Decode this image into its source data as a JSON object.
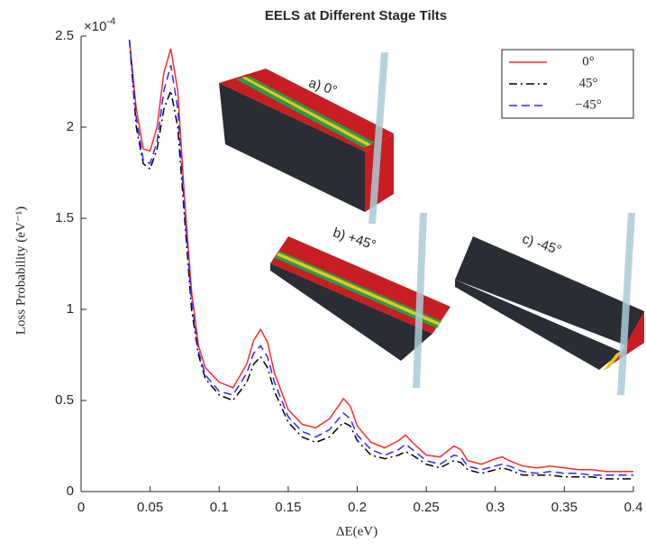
{
  "chart_data": {
    "type": "line",
    "title": "EELS at Different Stage Tilts",
    "xlabel": "ΔE(eV)",
    "ylabel": "Loss Probability (eV⁻¹)",
    "y_scale_base": "×10",
    "y_scale_exponent": "-4",
    "x": [
      0.035,
      0.04,
      0.045,
      0.05,
      0.055,
      0.06,
      0.065,
      0.07,
      0.075,
      0.08,
      0.085,
      0.09,
      0.1,
      0.11,
      0.12,
      0.125,
      0.13,
      0.135,
      0.14,
      0.15,
      0.16,
      0.17,
      0.18,
      0.19,
      0.195,
      0.2,
      0.21,
      0.22,
      0.23,
      0.235,
      0.24,
      0.25,
      0.26,
      0.27,
      0.275,
      0.28,
      0.29,
      0.3,
      0.305,
      0.31,
      0.32,
      0.33,
      0.34,
      0.35,
      0.36,
      0.37,
      0.38,
      0.39,
      0.4
    ],
    "series": [
      {
        "name": "0°",
        "color": "#ff2a2a",
        "dash": "solid",
        "values": [
          2.48,
          2.1,
          1.88,
          1.87,
          2.0,
          2.3,
          2.43,
          2.2,
          1.6,
          1.1,
          0.8,
          0.68,
          0.6,
          0.57,
          0.7,
          0.83,
          0.89,
          0.82,
          0.65,
          0.45,
          0.37,
          0.35,
          0.4,
          0.51,
          0.47,
          0.36,
          0.27,
          0.24,
          0.28,
          0.31,
          0.27,
          0.2,
          0.19,
          0.25,
          0.23,
          0.17,
          0.15,
          0.18,
          0.19,
          0.17,
          0.14,
          0.13,
          0.14,
          0.13,
          0.12,
          0.12,
          0.11,
          0.11,
          0.11
        ]
      },
      {
        "name": "45°",
        "color": "#000000",
        "dash": "dashdot",
        "values": [
          2.48,
          2.0,
          1.8,
          1.77,
          1.88,
          2.1,
          2.2,
          2.0,
          1.5,
          1.0,
          0.75,
          0.62,
          0.53,
          0.5,
          0.6,
          0.7,
          0.74,
          0.68,
          0.55,
          0.38,
          0.3,
          0.27,
          0.3,
          0.38,
          0.36,
          0.28,
          0.2,
          0.18,
          0.2,
          0.22,
          0.2,
          0.15,
          0.13,
          0.17,
          0.16,
          0.12,
          0.1,
          0.12,
          0.13,
          0.12,
          0.09,
          0.09,
          0.09,
          0.08,
          0.08,
          0.08,
          0.07,
          0.07,
          0.07
        ]
      },
      {
        "name": "−45°",
        "color": "#2a2aff",
        "dash": "dashed",
        "values": [
          2.48,
          2.05,
          1.82,
          1.8,
          1.92,
          2.2,
          2.34,
          2.1,
          1.55,
          1.05,
          0.77,
          0.64,
          0.55,
          0.53,
          0.65,
          0.76,
          0.8,
          0.74,
          0.6,
          0.41,
          0.33,
          0.3,
          0.34,
          0.43,
          0.4,
          0.31,
          0.23,
          0.2,
          0.23,
          0.26,
          0.23,
          0.17,
          0.15,
          0.2,
          0.19,
          0.14,
          0.12,
          0.14,
          0.15,
          0.14,
          0.11,
          0.1,
          0.11,
          0.1,
          0.1,
          0.09,
          0.09,
          0.09,
          0.09
        ]
      }
    ],
    "xlim": [
      0,
      0.4
    ],
    "xticks": [
      0,
      0.05,
      0.1,
      0.15,
      0.2,
      0.25,
      0.3,
      0.35,
      0.4
    ],
    "ylim": [
      0,
      2.5
    ],
    "yticks": [
      0,
      0.5,
      1,
      1.5,
      2,
      2.5
    ],
    "legend": "upper-right",
    "insets": [
      "a) 0°",
      "b) +45°",
      "c) -45°"
    ]
  }
}
